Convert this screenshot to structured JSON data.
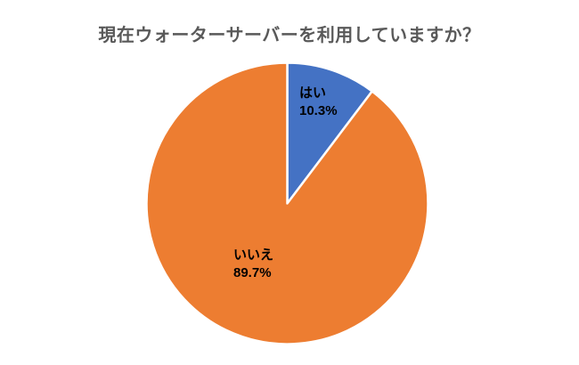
{
  "chart_data": {
    "type": "pie",
    "title": "現在ウォーターサーバーを利用していますか？",
    "categories": [
      "はい",
      "いいえ"
    ],
    "values": [
      10.3,
      89.7
    ],
    "labels": [
      {
        "name": "はい",
        "value_text": "10.3%"
      },
      {
        "name": "いいえ",
        "value_text": "89.7%"
      }
    ],
    "colors": [
      "#4472c4",
      "#ed7d31"
    ],
    "slice_border_color": "#ffffff",
    "title_color": "#595959",
    "label_color": "#000000",
    "start_angle_deg": 0,
    "direction": "clockwise",
    "legend": "none",
    "label_position": "inside"
  }
}
